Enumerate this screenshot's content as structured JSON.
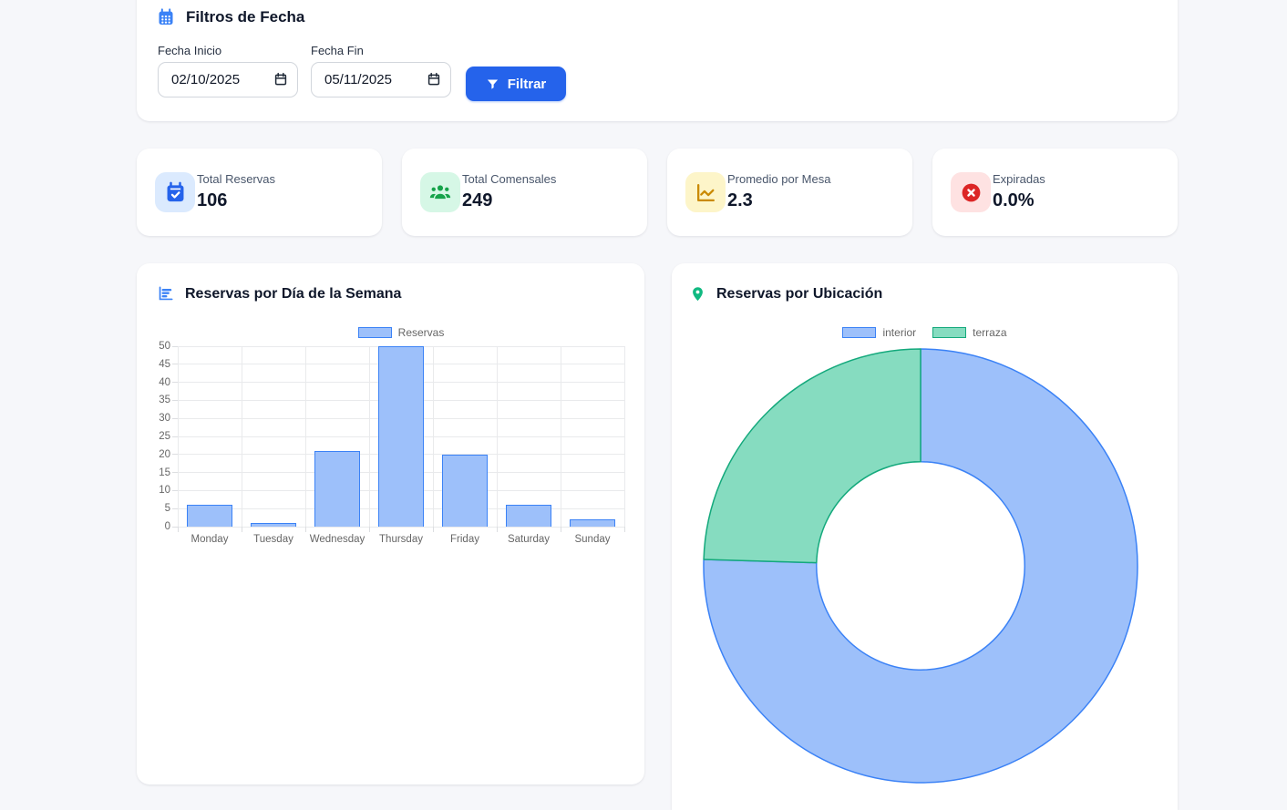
{
  "filters": {
    "title": "Filtros de Fecha",
    "start": {
      "label": "Fecha Inicio",
      "value": "02/10/2025"
    },
    "end": {
      "label": "Fecha Fin",
      "value": "05/11/2025"
    },
    "filter_button": "Filtrar",
    "accent_color": "#2563eb"
  },
  "stats": [
    {
      "label": "Total Reservas",
      "value": "106",
      "icon": "calendar-check-icon",
      "icon_color": "#2563eb",
      "icon_bg": "#dbeafe"
    },
    {
      "label": "Total Comensales",
      "value": "249",
      "icon": "users-icon",
      "icon_color": "#16a34a",
      "icon_bg": "#d6f7e6"
    },
    {
      "label": "Promedio por Mesa",
      "value": "2.3",
      "icon": "chart-line-icon",
      "icon_color": "#ca8a04",
      "icon_bg": "#fdf5c9"
    },
    {
      "label": "Expiradas",
      "value": "0.0%",
      "icon": "circle-x-icon",
      "icon_color": "#dc2626",
      "icon_bg": "#fee2e2"
    }
  ],
  "chart_data": [
    {
      "type": "bar",
      "title": "Reservas por Día de la Semana",
      "categories": [
        "Monday",
        "Tuesday",
        "Wednesday",
        "Thursday",
        "Friday",
        "Saturday",
        "Sunday"
      ],
      "series": [
        {
          "name": "Reservas",
          "values": [
            6,
            1,
            21,
            50,
            20,
            6,
            2
          ]
        }
      ],
      "ylim": [
        0,
        50
      ],
      "ytick_step": 5,
      "grid": true,
      "legend_position": "top",
      "bar_fill": "#9dc0fa",
      "bar_border": "#3b82f6"
    },
    {
      "type": "doughnut",
      "title": "Reservas por Ubicación",
      "labels": [
        "interior",
        "terraza"
      ],
      "values": [
        80,
        26
      ],
      "colors": [
        {
          "fill": "#9dc0fa",
          "border": "#3b82f6"
        },
        {
          "fill": "#86dcc0",
          "border": "#14a97c"
        }
      ],
      "legend_position": "top",
      "cutout_percent": 48
    }
  ]
}
